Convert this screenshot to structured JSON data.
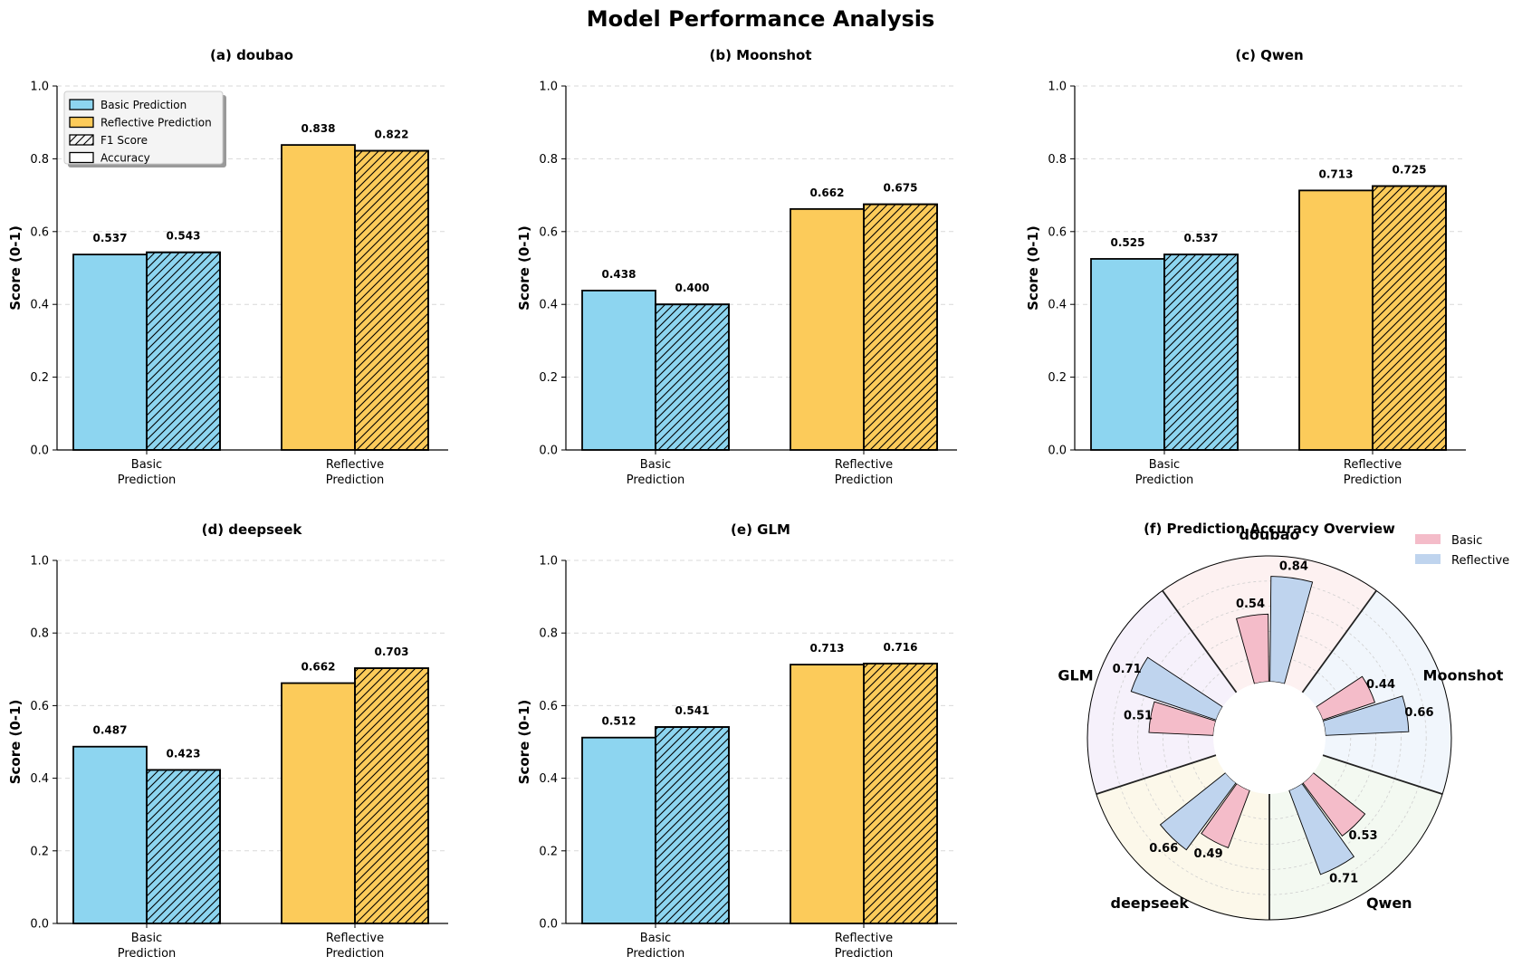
{
  "chart_data": {
    "title": "Model Performance Analysis",
    "colors": {
      "basic": "#8dd5f0",
      "reflective": "#fccb5a",
      "polar_basic": "#f4bcc9",
      "polar_reflective": "#bfd4ee",
      "sector_doubao": "#fdf1f1",
      "sector_Moonshot": "#f1f6fc",
      "sector_Qwen": "#f3f9f1",
      "sector_deepseek": "#fcf8ea",
      "sector_GLM": "#f6f1fb"
    },
    "panels": [
      {
        "type": "bar",
        "title": "(a) doubao",
        "ylabel": "Score (0-1)",
        "ylim": [
          0,
          1
        ],
        "yticks": [
          "0.0",
          "0.2",
          "0.4",
          "0.6",
          "0.8",
          "1.0"
        ],
        "categories": [
          [
            "Basic",
            "Prediction"
          ],
          [
            "Reflective",
            "Prediction"
          ]
        ],
        "series": [
          {
            "name": "Accuracy",
            "values": [
              0.537,
              0.838
            ],
            "labels": [
              "0.537",
              "0.838"
            ]
          },
          {
            "name": "F1 Score",
            "values": [
              0.543,
              0.822
            ],
            "labels": [
              "0.543",
              "0.822"
            ]
          }
        ],
        "legend": [
          "Basic Prediction",
          "Reflective Prediction",
          "F1 Score",
          "Accuracy"
        ]
      },
      {
        "type": "bar",
        "title": "(b) Moonshot",
        "ylabel": "Score (0-1)",
        "ylim": [
          0,
          1
        ],
        "yticks": [
          "0.0",
          "0.2",
          "0.4",
          "0.6",
          "0.8",
          "1.0"
        ],
        "categories": [
          [
            "Basic",
            "Prediction"
          ],
          [
            "Reflective",
            "Prediction"
          ]
        ],
        "series": [
          {
            "name": "Accuracy",
            "values": [
              0.438,
              0.662
            ],
            "labels": [
              "0.438",
              "0.662"
            ]
          },
          {
            "name": "F1 Score",
            "values": [
              0.4,
              0.675
            ],
            "labels": [
              "0.400",
              "0.675"
            ]
          }
        ]
      },
      {
        "type": "bar",
        "title": "(c) Qwen",
        "ylabel": "Score (0-1)",
        "ylim": [
          0,
          1
        ],
        "yticks": [
          "0.0",
          "0.2",
          "0.4",
          "0.6",
          "0.8",
          "1.0"
        ],
        "categories": [
          [
            "Basic",
            "Prediction"
          ],
          [
            "Reflective",
            "Prediction"
          ]
        ],
        "series": [
          {
            "name": "Accuracy",
            "values": [
              0.525,
              0.713
            ],
            "labels": [
              "0.525",
              "0.713"
            ]
          },
          {
            "name": "F1 Score",
            "values": [
              0.537,
              0.725
            ],
            "labels": [
              "0.537",
              "0.725"
            ]
          }
        ]
      },
      {
        "type": "bar",
        "title": "(d) deepseek",
        "ylabel": "Score (0-1)",
        "ylim": [
          0,
          1
        ],
        "yticks": [
          "0.0",
          "0.2",
          "0.4",
          "0.6",
          "0.8",
          "1.0"
        ],
        "categories": [
          [
            "Basic",
            "Prediction"
          ],
          [
            "Reflective",
            "Prediction"
          ]
        ],
        "series": [
          {
            "name": "Accuracy",
            "values": [
              0.487,
              0.662
            ],
            "labels": [
              "0.487",
              "0.662"
            ]
          },
          {
            "name": "F1 Score",
            "values": [
              0.423,
              0.703
            ],
            "labels": [
              "0.423",
              "0.703"
            ]
          }
        ]
      },
      {
        "type": "bar",
        "title": "(e) GLM",
        "ylabel": "Score (0-1)",
        "ylim": [
          0,
          1
        ],
        "yticks": [
          "0.0",
          "0.2",
          "0.4",
          "0.6",
          "0.8",
          "1.0"
        ],
        "categories": [
          [
            "Basic",
            "Prediction"
          ],
          [
            "Reflective",
            "Prediction"
          ]
        ],
        "series": [
          {
            "name": "Accuracy",
            "values": [
              0.512,
              0.713
            ],
            "labels": [
              "0.512",
              "0.713"
            ]
          },
          {
            "name": "F1 Score",
            "values": [
              0.541,
              0.716
            ],
            "labels": [
              "0.541",
              "0.716"
            ]
          }
        ]
      },
      {
        "type": "polar_bar",
        "title": "(f) Prediction Accuracy Overview",
        "rlim": [
          0,
          1
        ],
        "models": [
          "doubao",
          "Moonshot",
          "Qwen",
          "deepseek",
          "GLM"
        ],
        "series": [
          {
            "name": "Basic",
            "values": [
              0.537,
              0.438,
              0.525,
              0.487,
              0.512
            ],
            "labels": [
              "0.54",
              "0.44",
              "0.53",
              "0.49",
              "0.51"
            ]
          },
          {
            "name": "Reflective",
            "values": [
              0.838,
              0.662,
              0.713,
              0.662,
              0.713
            ],
            "labels": [
              "0.84",
              "0.66",
              "0.71",
              "0.66",
              "0.71"
            ]
          }
        ],
        "legend": [
          "Basic",
          "Reflective"
        ],
        "legend_position": "top-right"
      }
    ]
  }
}
